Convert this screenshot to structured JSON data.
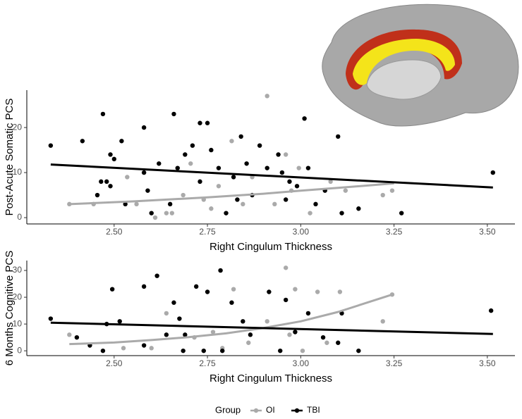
{
  "chart_data": [
    {
      "type": "scatter",
      "xlabel": "Right Cingulum Thickness",
      "ylabel": "Post-Acute Somatic PCS",
      "xlim": [
        2.266,
        3.574
      ],
      "ylim": [
        -1.4,
        28.3
      ],
      "xticks": [
        {
          "value": 2.5,
          "label": "2.50"
        },
        {
          "value": 2.75,
          "label": "2.75"
        },
        {
          "value": 3.0,
          "label": "3.00"
        },
        {
          "value": 3.25,
          "label": "3.25"
        },
        {
          "value": 3.5,
          "label": "3.50"
        }
      ],
      "yticks": [
        0,
        10,
        20
      ],
      "grid": false,
      "legend_title": "Group",
      "series": [
        {
          "name": "OI",
          "color": "#aaaaaa",
          "x": [
            2.38,
            2.445,
            2.535,
            2.56,
            2.61,
            2.64,
            2.685,
            2.74,
            2.78,
            2.815,
            2.91,
            2.87,
            2.93,
            2.975,
            2.995,
            3.025,
            3.08,
            3.12,
            3.22,
            3.245,
            2.76,
            2.705,
            2.845,
            2.96,
            2.655
          ],
          "values": [
            3,
            3,
            9,
            3,
            0,
            1,
            5,
            4,
            7,
            17,
            27,
            9,
            3,
            6,
            11,
            1,
            8,
            6,
            5,
            6,
            2,
            12,
            3,
            14,
            1
          ],
          "trend": {
            "x": [
              2.38,
              2.55,
              2.75,
              2.9,
              3.0,
              3.1,
              3.25
            ],
            "y": [
              3,
              3.6,
              4.5,
              5.3,
              6,
              6.6,
              7.6
            ]
          }
        },
        {
          "name": "TBI",
          "color": "#000000",
          "x": [
            2.33,
            2.415,
            2.47,
            2.49,
            2.5,
            2.465,
            2.48,
            2.49,
            2.455,
            2.52,
            2.58,
            2.58,
            2.59,
            2.62,
            2.66,
            2.65,
            2.69,
            2.71,
            2.73,
            2.75,
            2.76,
            2.78,
            2.8,
            2.82,
            2.84,
            2.855,
            2.87,
            2.89,
            2.91,
            2.94,
            2.96,
            2.97,
            2.99,
            3.01,
            3.02,
            3.04,
            3.065,
            3.1,
            3.11,
            3.155,
            3.27,
            3.515,
            2.95,
            2.83,
            2.73,
            2.6,
            2.53,
            2.67
          ],
          "values": [
            16,
            17,
            23,
            14,
            13,
            8,
            8,
            7,
            5,
            17,
            10,
            20,
            6,
            12,
            23,
            3,
            14,
            16,
            21,
            21,
            15,
            11,
            1,
            9,
            18,
            12,
            5,
            16,
            11,
            14,
            4,
            8,
            7,
            22,
            11,
            3,
            6,
            18,
            1,
            2,
            1,
            10,
            10,
            4,
            8,
            1,
            3,
            11
          ],
          "trend": {
            "x": [
              2.33,
              3.515
            ],
            "y": [
              11.8,
              6.7
            ]
          }
        }
      ]
    },
    {
      "type": "scatter",
      "xlabel": "Right Cingulum Thickness",
      "ylabel": "6 Months Cognitive PCS",
      "xlim": [
        2.266,
        3.574
      ],
      "ylim": [
        -1.8,
        33.7
      ],
      "xticks": [
        {
          "value": 2.5,
          "label": "2.50"
        },
        {
          "value": 2.75,
          "label": "2.75"
        },
        {
          "value": 3.0,
          "label": "3.00"
        },
        {
          "value": 3.25,
          "label": "3.25"
        },
        {
          "value": 3.5,
          "label": "3.50"
        }
      ],
      "yticks": [
        0,
        10,
        20,
        30
      ],
      "grid": false,
      "series": [
        {
          "color": "#aaaaaa",
          "x": [
            2.38,
            2.525,
            2.6,
            2.64,
            2.715,
            2.765,
            2.82,
            2.86,
            2.91,
            2.96,
            2.985,
            3.005,
            3.045,
            3.07,
            3.105,
            3.22,
            3.245,
            2.97,
            2.79
          ],
          "values": [
            6,
            1,
            1,
            14,
            5,
            7,
            23,
            3,
            11,
            31,
            23,
            0,
            22,
            3,
            22,
            11,
            21,
            6,
            1
          ],
          "trend": {
            "x": [
              2.38,
              2.5,
              2.6,
              2.7,
              2.8,
              2.9,
              3.0,
              3.1,
              3.245
            ],
            "y": [
              2.5,
              3.1,
              4,
              5.1,
              6.5,
              8.5,
              11,
              14.5,
              21
            ]
          }
        },
        {
          "color": "#000000",
          "x": [
            2.33,
            2.4,
            2.495,
            2.515,
            2.48,
            2.47,
            2.58,
            2.615,
            2.58,
            2.66,
            2.675,
            2.69,
            2.72,
            2.75,
            2.785,
            2.79,
            2.815,
            2.845,
            2.865,
            2.915,
            2.945,
            2.96,
            2.985,
            3.02,
            3.06,
            3.1,
            3.11,
            3.155,
            3.51,
            2.74,
            2.64,
            2.685,
            2.435
          ],
          "values": [
            12,
            5,
            23,
            11,
            10,
            0,
            24,
            28,
            2,
            18,
            12,
            6,
            24,
            22,
            30,
            0,
            18,
            11,
            6,
            22,
            0,
            19,
            7,
            14,
            5,
            3,
            14,
            0,
            15,
            0,
            6,
            0,
            2
          ],
          "trend": {
            "x": [
              2.33,
              3.515
            ],
            "y": [
              10.5,
              6.3
            ]
          }
        }
      ]
    }
  ]
}
